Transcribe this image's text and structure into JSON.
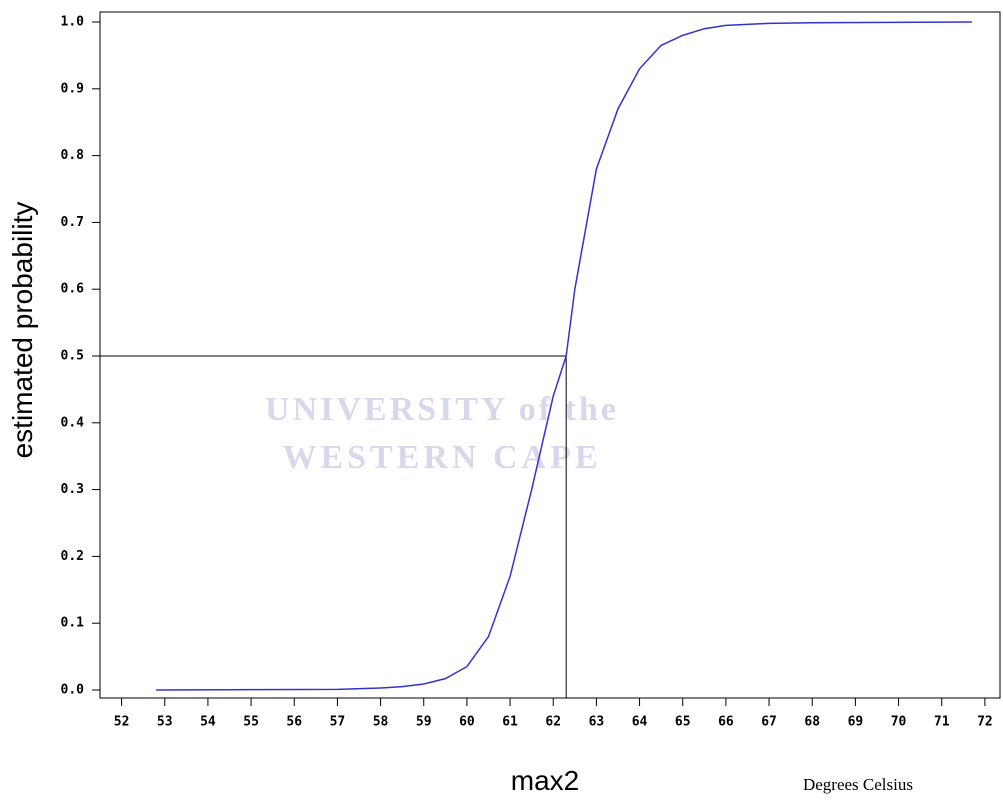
{
  "chart_data": {
    "type": "line",
    "y_label": "estimated probability",
    "x_label": "max2",
    "annotation": "Degrees Celsius",
    "watermark": [
      "UNIVERSITY of the",
      "WESTERN CAPE"
    ],
    "color": "#3333cc",
    "x": [
      52.8,
      57,
      58,
      58.5,
      59,
      59.5,
      60,
      60.5,
      61,
      61.5,
      62,
      62.3,
      62.5,
      63,
      63.5,
      64,
      64.5,
      65,
      65.5,
      66,
      67,
      68,
      71.7
    ],
    "values": [
      0,
      0.001,
      0.003,
      0.005,
      0.009,
      0.017,
      0.035,
      0.08,
      0.17,
      0.3,
      0.44,
      0.5,
      0.6,
      0.78,
      0.87,
      0.93,
      0.965,
      0.98,
      0.99,
      0.995,
      0.998,
      0.999,
      1.0
    ],
    "reference_x": 62.3,
    "reference_y": 0.5,
    "xlim": [
      51.5,
      72.35
    ],
    "ylim": [
      -0.012,
      1.015
    ],
    "xticks": [
      52,
      53,
      54,
      55,
      56,
      57,
      58,
      59,
      60,
      61,
      62,
      63,
      64,
      65,
      66,
      67,
      68,
      69,
      70,
      71,
      72
    ],
    "yticks": [
      {
        "value": 0,
        "label": "0.0"
      },
      0.1,
      0.2,
      0.3,
      0.4,
      0.5,
      0.6,
      0.7,
      0.8,
      0.9,
      {
        "value": 1,
        "label": "1.0"
      }
    ]
  }
}
